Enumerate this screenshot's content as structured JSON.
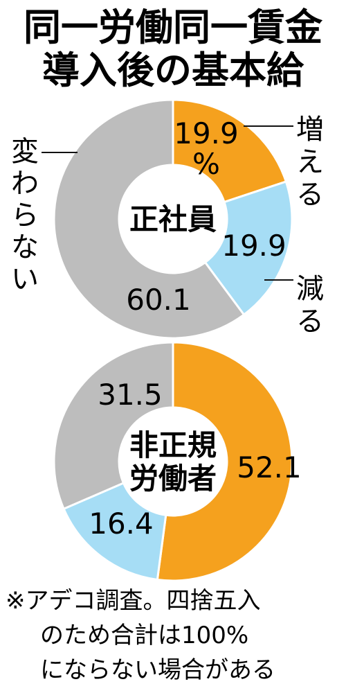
{
  "title": [
    "同一労働同一賃金",
    "導入後の基本給"
  ],
  "legend": {
    "increase": "増える",
    "decrease": "減る",
    "unchanged": "変わらない"
  },
  "colors": {
    "increase": "#F5A11E",
    "decrease": "#A6DDF5",
    "unchanged": "#BDBDBD",
    "stroke": "#ffffff"
  },
  "note": [
    "※アデコ調査。四捨五入",
    "のため合計は100%",
    "にならない場合がある"
  ],
  "chart_data": [
    {
      "type": "pie",
      "center_label": [
        "正社員"
      ],
      "slices": [
        {
          "label": "増える",
          "value": 19.9,
          "display": [
            "19.9",
            "%"
          ]
        },
        {
          "label": "減る",
          "value": 19.9,
          "display": [
            "19.9"
          ]
        },
        {
          "label": "変わらない",
          "value": 60.1,
          "display": [
            "60.1"
          ]
        }
      ]
    },
    {
      "type": "pie",
      "center_label": [
        "非正規",
        "労働者"
      ],
      "slices": [
        {
          "label": "増える",
          "value": 52.1,
          "display": [
            "52.1"
          ]
        },
        {
          "label": "減る",
          "value": 16.4,
          "display": [
            "16.4"
          ]
        },
        {
          "label": "変わらない",
          "value": 31.5,
          "display": [
            "31.5"
          ]
        }
      ]
    }
  ]
}
